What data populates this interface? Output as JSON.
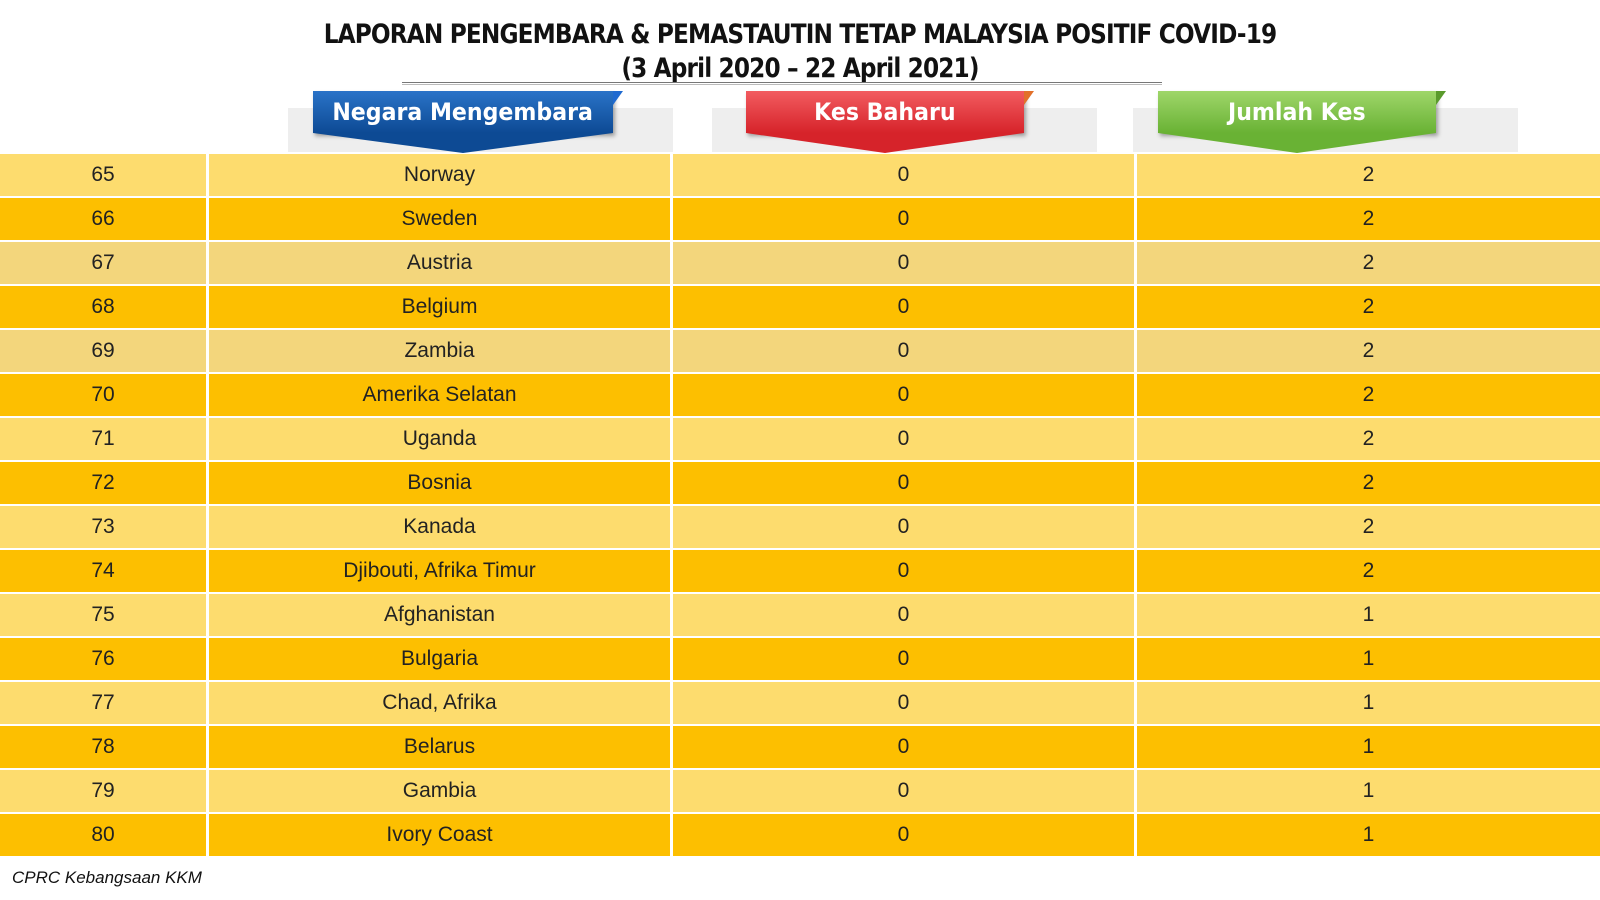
{
  "title": {
    "line1": "LAPORAN PENGEMBARA & PEMASTAUTIN TETAP MALAYSIA POSITIF COVID-19",
    "line2": "(3 April 2020 – 22 April 2021)"
  },
  "headers": {
    "country": "Negara Mengembara",
    "new_cases": "Kes Baharu",
    "total_cases": "Jumlah Kes"
  },
  "rows": [
    {
      "no": "65",
      "country": "Norway",
      "new": "0",
      "total": "2",
      "shade": "light"
    },
    {
      "no": "66",
      "country": "Sweden",
      "new": "0",
      "total": "2",
      "shade": "dark"
    },
    {
      "no": "67",
      "country": "Austria",
      "new": "0",
      "total": "2",
      "shade": "pale"
    },
    {
      "no": "68",
      "country": "Belgium",
      "new": "0",
      "total": "2",
      "shade": "dark"
    },
    {
      "no": "69",
      "country": "Zambia",
      "new": "0",
      "total": "2",
      "shade": "pale"
    },
    {
      "no": "70",
      "country": "Amerika Selatan",
      "new": "0",
      "total": "2",
      "shade": "dark"
    },
    {
      "no": "71",
      "country": "Uganda",
      "new": "0",
      "total": "2",
      "shade": "light"
    },
    {
      "no": "72",
      "country": "Bosnia",
      "new": "0",
      "total": "2",
      "shade": "dark"
    },
    {
      "no": "73",
      "country": "Kanada",
      "new": "0",
      "total": "2",
      "shade": "light"
    },
    {
      "no": "74",
      "country": "Djibouti, Afrika Timur",
      "new": "0",
      "total": "2",
      "shade": "dark"
    },
    {
      "no": "75",
      "country": "Afghanistan",
      "new": "0",
      "total": "1",
      "shade": "light"
    },
    {
      "no": "76",
      "country": "Bulgaria",
      "new": "0",
      "total": "1",
      "shade": "dark"
    },
    {
      "no": "77",
      "country": "Chad, Afrika",
      "new": "0",
      "total": "1",
      "shade": "light"
    },
    {
      "no": "78",
      "country": "Belarus",
      "new": "0",
      "total": "1",
      "shade": "dark"
    },
    {
      "no": "79",
      "country": "Gambia",
      "new": "0",
      "total": "1",
      "shade": "light"
    },
    {
      "no": "80",
      "country": "Ivory Coast",
      "new": "0",
      "total": "1",
      "shade": "dark"
    }
  ],
  "footer": "CPRC Kebangsaan KKM",
  "colors": {
    "row_light": "#fddc6e",
    "row_dark": "#fdbf00",
    "row_pale": "#f3d67c",
    "header_country": "#0d4a94",
    "header_new": "#d6232a",
    "header_total": "#69b234"
  }
}
